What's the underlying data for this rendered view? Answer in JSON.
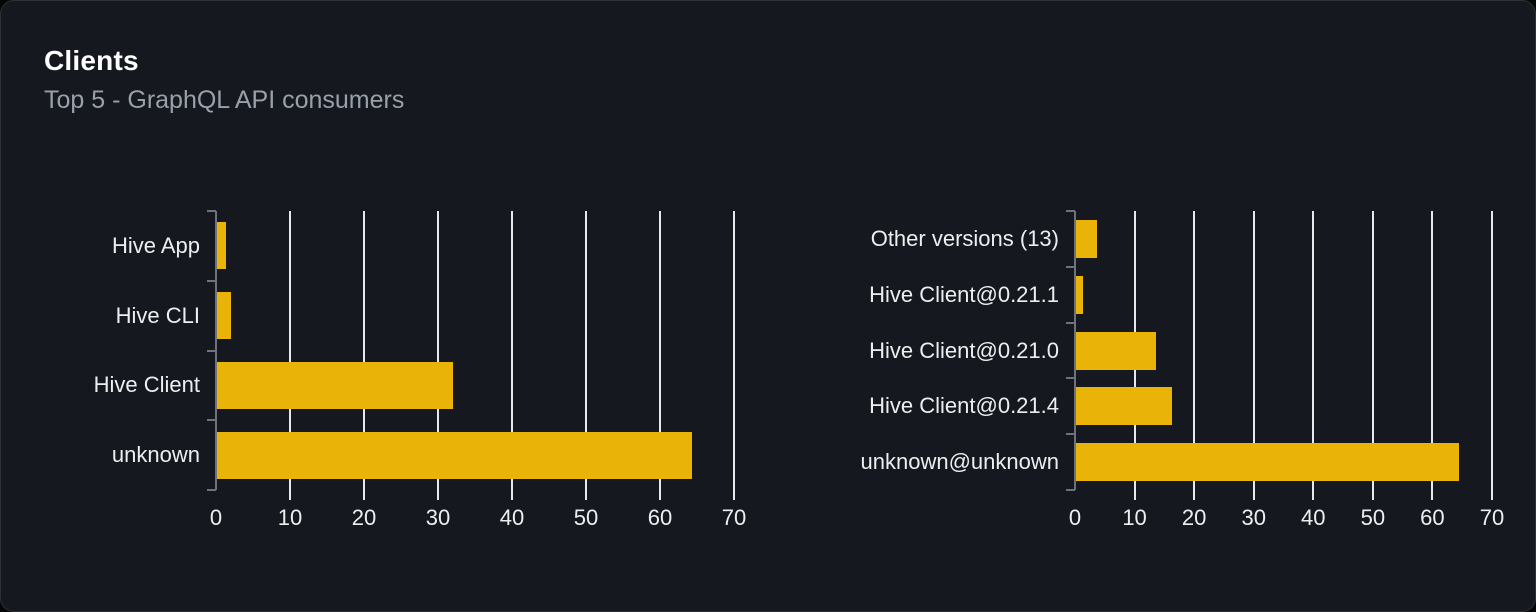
{
  "card": {
    "title": "Clients",
    "subtitle": "Top 5 - GraphQL API consumers"
  },
  "colors": {
    "bar": "#eab308",
    "card_bg": "#15181e",
    "card_border": "#2d3137",
    "grid": "#e7e8ea",
    "axis": "#6e727a",
    "text": "#edeef0",
    "subtitle": "#98a0a9"
  },
  "chart_data": [
    {
      "type": "bar",
      "orientation": "horizontal",
      "name": "clients-by-name",
      "categories": [
        "Hive App",
        "Hive CLI",
        "Hive Client",
        "unknown"
      ],
      "values": [
        1.4,
        2,
        32,
        64.3
      ],
      "xlim": [
        0,
        70
      ],
      "xticks": [
        0,
        10,
        20,
        30,
        40,
        50,
        60,
        70
      ],
      "xlabel": "",
      "ylabel": "",
      "grid": true,
      "legend": false,
      "bar_color": "#eab308"
    },
    {
      "type": "bar",
      "orientation": "horizontal",
      "name": "clients-by-version",
      "categories": [
        "Other versions (13)",
        "Hive Client@0.21.1",
        "Hive Client@0.21.0",
        "Hive Client@0.21.4",
        "unknown@unknown"
      ],
      "values": [
        3.7,
        1.4,
        13.6,
        16.3,
        64.4
      ],
      "xlim": [
        0,
        70
      ],
      "xticks": [
        0,
        10,
        20,
        30,
        40,
        50,
        60,
        70
      ],
      "xlabel": "",
      "ylabel": "",
      "grid": true,
      "legend": false,
      "bar_color": "#eab308"
    }
  ]
}
